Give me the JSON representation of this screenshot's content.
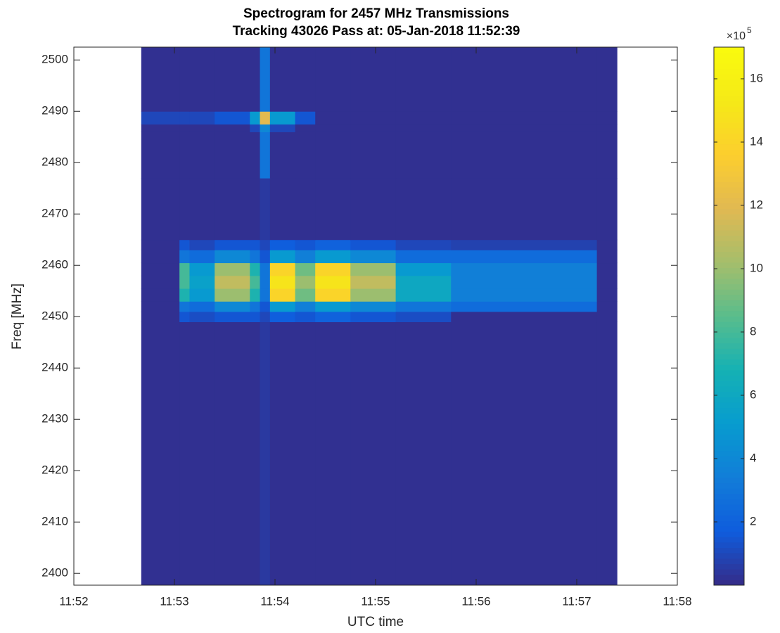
{
  "chart_data": {
    "type": "heatmap",
    "title": "Spectrogram for 2457 MHz Transmissions",
    "subtitle": "Tracking 43026 Pass at: 05-Jan-2018 11:52:39",
    "x_label": "UTC time",
    "y_label": "Freq [MHz]",
    "colormap": "parula",
    "colorbar_multiplier": "×10",
    "colorbar_exponent": "5",
    "clim": [
      0,
      17
    ],
    "cticks": [
      2,
      4,
      6,
      8,
      10,
      12,
      14,
      16
    ],
    "xlim": [
      712,
      718
    ],
    "xticks": [
      {
        "value": 712,
        "label": "11:52"
      },
      {
        "value": 713,
        "label": "11:53"
      },
      {
        "value": 714,
        "label": "11:54"
      },
      {
        "value": 715,
        "label": "11:55"
      },
      {
        "value": 716,
        "label": "11:56"
      },
      {
        "value": 717,
        "label": "11:57"
      },
      {
        "value": 718,
        "label": "11:58"
      }
    ],
    "ylim": [
      2397.7,
      2502.5
    ],
    "yticks": [
      2400,
      2410,
      2420,
      2430,
      2440,
      2450,
      2460,
      2470,
      2480,
      2490,
      2500
    ],
    "x_edges": [
      712.67,
      713.05,
      713.15,
      713.4,
      713.75,
      713.85,
      713.95,
      714.2,
      714.4,
      714.75,
      715.2,
      715.75,
      717.2,
      717.4
    ],
    "y_edges": [
      2397.7,
      2449,
      2451,
      2453,
      2455.5,
      2458,
      2460.5,
      2463,
      2465,
      2477,
      2486,
      2487.5,
      2490,
      2502.5
    ],
    "z": [
      [
        0.2,
        0.2,
        0.2,
        0.2,
        0.2,
        0.5,
        0.2,
        0.2,
        0.2,
        0.2,
        0.2,
        0.2,
        0.2
      ],
      [
        0.2,
        1.5,
        1.2,
        1.5,
        1.5,
        1,
        1.8,
        1.5,
        2,
        1.5,
        1.2,
        0.2,
        0.2
      ],
      [
        0.2,
        3,
        2.5,
        4,
        3,
        1.5,
        5,
        3.5,
        5,
        4,
        3,
        2.5,
        0.2
      ],
      [
        0.2,
        7,
        5,
        10,
        7,
        3,
        14,
        9,
        14,
        10,
        6,
        3.5,
        0.2
      ],
      [
        0.2,
        8,
        5.5,
        11,
        8,
        3,
        15,
        10,
        15,
        11,
        6,
        3.5,
        0.2
      ],
      [
        0.2,
        8,
        5,
        10,
        7,
        3,
        14,
        9,
        14,
        10,
        5,
        3.5,
        0.2
      ],
      [
        0.2,
        3,
        2.5,
        4,
        3,
        1.5,
        5,
        3.5,
        5,
        4,
        2.5,
        2.5,
        0.2
      ],
      [
        0.2,
        1.5,
        1,
        1.5,
        1.5,
        1,
        1.8,
        1.5,
        2,
        1.5,
        1,
        0.8,
        0.2
      ],
      [
        0.2,
        0.2,
        0.2,
        0.2,
        0.2,
        0.5,
        0.2,
        0.2,
        0.2,
        0.2,
        0.2,
        0.2,
        0.2
      ],
      [
        0.2,
        0.2,
        0.2,
        0.2,
        0.2,
        3,
        0.2,
        0.2,
        0.2,
        0.2,
        0.2,
        0.2,
        0.2
      ],
      [
        0.2,
        0.2,
        0.2,
        0.2,
        1,
        4,
        1,
        0.2,
        0.2,
        0.2,
        0.2,
        0.2,
        0.2
      ],
      [
        1,
        1,
        1,
        1.5,
        5,
        12,
        5,
        1.5,
        0.2,
        0.2,
        0.2,
        0.2,
        0.2
      ],
      [
        0.2,
        0.2,
        0.2,
        0.2,
        0.2,
        3,
        0.2,
        0.2,
        0.2,
        0.2,
        0.2,
        0.2,
        0.2
      ]
    ]
  }
}
